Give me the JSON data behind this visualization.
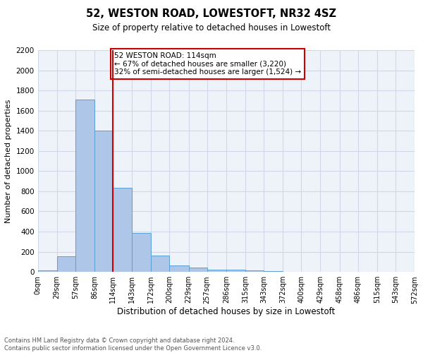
{
  "title1": "52, WESTON ROAD, LOWESTOFT, NR32 4SZ",
  "title2": "Size of property relative to detached houses in Lowestoft",
  "xlabel": "Distribution of detached houses by size in Lowestoft",
  "ylabel": "Number of detached properties",
  "annotation_line1": "52 WESTON ROAD: 114sqm",
  "annotation_line2": "← 67% of detached houses are smaller (3,220)",
  "annotation_line3": "32% of semi-detached houses are larger (1,524) →",
  "footer1": "Contains HM Land Registry data © Crown copyright and database right 2024.",
  "footer2": "Contains public sector information licensed under the Open Government Licence v3.0.",
  "bin_edges": [
    0,
    29,
    57,
    86,
    114,
    143,
    172,
    200,
    229,
    257,
    286,
    315,
    343,
    372,
    400,
    429,
    458,
    486,
    515,
    543,
    572
  ],
  "bin_counts": [
    15,
    155,
    1710,
    1400,
    835,
    385,
    165,
    65,
    40,
    25,
    25,
    15,
    10,
    0,
    0,
    0,
    0,
    0,
    0,
    0
  ],
  "property_size": 114,
  "bar_color": "#aec6e8",
  "bar_edge_color": "#5a9fd4",
  "vline_color": "#cc0000",
  "grid_color": "#d0d8e8",
  "background_color": "#eef2f9",
  "ylim": [
    0,
    2200
  ],
  "yticks": [
    0,
    200,
    400,
    600,
    800,
    1000,
    1200,
    1400,
    1600,
    1800,
    2000,
    2200
  ],
  "title1_fontsize": 10.5,
  "title2_fontsize": 8.5,
  "ylabel_fontsize": 8,
  "xlabel_fontsize": 8.5,
  "xtick_fontsize": 7,
  "ytick_fontsize": 7.5,
  "footer_fontsize": 6,
  "ann_fontsize": 7.5
}
